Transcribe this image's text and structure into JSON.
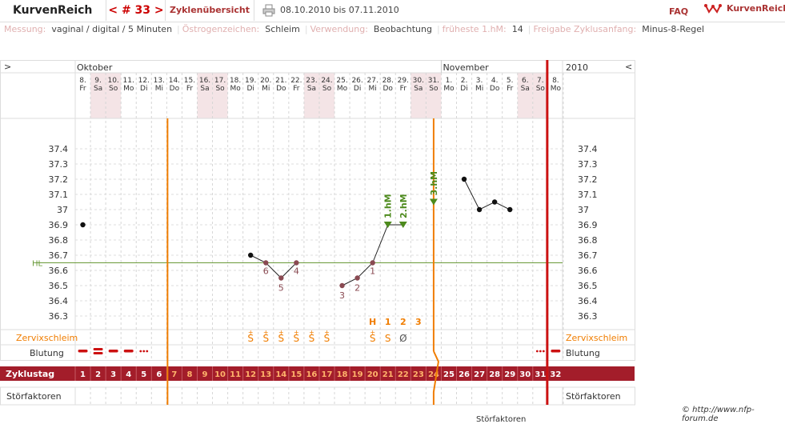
{
  "header": {
    "app_title": "KurvenReich",
    "cycle_nav": "< # 33 >",
    "overview_tab": "Zyklenübersicht",
    "date_range": "08.10.2010 bis 07.11.2010",
    "faq": "FAQ",
    "logo_text": "KurvenReich",
    "print_icon": "printer-icon"
  },
  "settings": [
    {
      "key": "Messung:",
      "value": "vaginal / digital / 5 Minuten"
    },
    {
      "key": "Östrogenzeichen:",
      "value": "Schleim"
    },
    {
      "key": "Verwendung:",
      "value": "Beobachtung"
    },
    {
      "key": "früheste 1.hM:",
      "value": "14"
    },
    {
      "key": "Freigabe Zyklusanfang:",
      "value": "Minus-8-Regel"
    }
  ],
  "chart_data": {
    "type": "line",
    "year": "2010",
    "months": [
      "Oktober",
      "November"
    ],
    "nav_left": ">",
    "nav_right": "<",
    "days": [
      {
        "d": "8.",
        "w": "Fr",
        "z": "1"
      },
      {
        "d": "9.",
        "w": "Sa",
        "z": "2"
      },
      {
        "d": "10.",
        "w": "So",
        "z": "3"
      },
      {
        "d": "11.",
        "w": "Mo",
        "z": "4"
      },
      {
        "d": "12.",
        "w": "Di",
        "z": "5"
      },
      {
        "d": "13.",
        "w": "Mi",
        "z": "6"
      },
      {
        "d": "14.",
        "w": "Do",
        "z": "7"
      },
      {
        "d": "15.",
        "w": "Fr",
        "z": "8"
      },
      {
        "d": "16.",
        "w": "Sa",
        "z": "9"
      },
      {
        "d": "17.",
        "w": "So",
        "z": "10"
      },
      {
        "d": "18.",
        "w": "Mo",
        "z": "11"
      },
      {
        "d": "19.",
        "w": "Di",
        "z": "12"
      },
      {
        "d": "20.",
        "w": "Mi",
        "z": "13"
      },
      {
        "d": "21.",
        "w": "Do",
        "z": "14"
      },
      {
        "d": "22.",
        "w": "Fr",
        "z": "15"
      },
      {
        "d": "23.",
        "w": "Sa",
        "z": "16"
      },
      {
        "d": "24.",
        "w": "So",
        "z": "17"
      },
      {
        "d": "25.",
        "w": "Mo",
        "z": "18"
      },
      {
        "d": "26.",
        "w": "Di",
        "z": "19"
      },
      {
        "d": "27.",
        "w": "Mi",
        "z": "20"
      },
      {
        "d": "28.",
        "w": "Do",
        "z": "21"
      },
      {
        "d": "29.",
        "w": "Fr",
        "z": "22"
      },
      {
        "d": "30.",
        "w": "Sa",
        "z": "23"
      },
      {
        "d": "31.",
        "w": "So",
        "z": "24"
      },
      {
        "d": "1.",
        "w": "Mo",
        "z": "25"
      },
      {
        "d": "2.",
        "w": "Di",
        "z": "26"
      },
      {
        "d": "3.",
        "w": "Mi",
        "z": "27"
      },
      {
        "d": "4.",
        "w": "Do",
        "z": "28"
      },
      {
        "d": "5.",
        "w": "Fr",
        "z": "29"
      },
      {
        "d": "6.",
        "w": "Sa",
        "z": "30"
      },
      {
        "d": "7.",
        "w": "So",
        "z": "31"
      },
      {
        "d": "8.",
        "w": "Mo",
        "z": "32"
      }
    ],
    "yticks": [
      "37.4",
      "37.3",
      "37.2",
      "37.1",
      "37",
      "36.9",
      "36.8",
      "36.7",
      "36.6",
      "36.5",
      "36.4",
      "36.3"
    ],
    "ylim": [
      36.3,
      37.4
    ],
    "hl_label": "HL",
    "hl_value": 36.65,
    "temps": [
      {
        "day": 1,
        "t": 36.9
      },
      {
        "day": 12,
        "t": 36.7
      },
      {
        "day": 13,
        "t": 36.65,
        "n": "6"
      },
      {
        "day": 14,
        "t": 36.55,
        "n": "5"
      },
      {
        "day": 15,
        "t": 36.65,
        "n": "4"
      },
      {
        "day": 18,
        "t": 36.5,
        "n": "3"
      },
      {
        "day": 19,
        "t": 36.55,
        "n": "2"
      },
      {
        "day": 20,
        "t": 36.65,
        "n": "1"
      },
      {
        "day": 21,
        "t": 36.9,
        "m": "1.hM"
      },
      {
        "day": 22,
        "t": 36.9,
        "m": "2.hM"
      },
      {
        "day": 24,
        "t": 37.05,
        "m": "3.hM"
      },
      {
        "day": 26,
        "t": 37.2
      },
      {
        "day": 27,
        "t": 37.0
      },
      {
        "day": 28,
        "t": 37.05
      },
      {
        "day": 29,
        "t": 37.0
      }
    ],
    "line_segments": [
      [
        12,
        15
      ],
      [
        18,
        22
      ],
      [
        26,
        29
      ]
    ],
    "mucus_label": "Zervixschleim",
    "mucus_header": [
      {
        "day": 20,
        "s": "H"
      },
      {
        "day": 21,
        "s": "1"
      },
      {
        "day": 22,
        "s": "2"
      },
      {
        "day": 23,
        "s": "3"
      }
    ],
    "mucus": [
      {
        "day": 12,
        "s": "S"
      },
      {
        "day": 13,
        "s": "S"
      },
      {
        "day": 14,
        "s": "S"
      },
      {
        "day": 15,
        "s": "S"
      },
      {
        "day": 16,
        "s": "S"
      },
      {
        "day": 17,
        "s": "S"
      },
      {
        "day": 20,
        "s": "S"
      },
      {
        "day": 21,
        "s": "S"
      },
      {
        "day": 22,
        "s": "Ø"
      }
    ],
    "mucus_plus": [
      12,
      13,
      14,
      15,
      16,
      17,
      20
    ],
    "bleeding_label": "Blutung",
    "bleeding": [
      {
        "day": 1,
        "k": "heavy"
      },
      {
        "day": 2,
        "k": "double"
      },
      {
        "day": 3,
        "k": "heavy"
      },
      {
        "day": 4,
        "k": "heavy"
      },
      {
        "day": 5,
        "k": "dots"
      },
      {
        "day": 31,
        "k": "dots"
      },
      {
        "day": 32,
        "k": "heavy"
      }
    ],
    "cycle_label": "Zyklustag",
    "factors_label": "Störfaktoren",
    "fertile_start_day": 7,
    "fertile_end_day": 24,
    "cycle_end_day": 32
  },
  "footer": {
    "copyright": "© http://www.nfp-forum.de",
    "cutoff_label": "Störfaktoren"
  },
  "colors": {
    "accent": "#a31d2a",
    "orange": "#f07d00",
    "hl_green": "#6a9a3a",
    "weekend": "#f4e4e6",
    "marker_green": "#4d8a1d"
  }
}
